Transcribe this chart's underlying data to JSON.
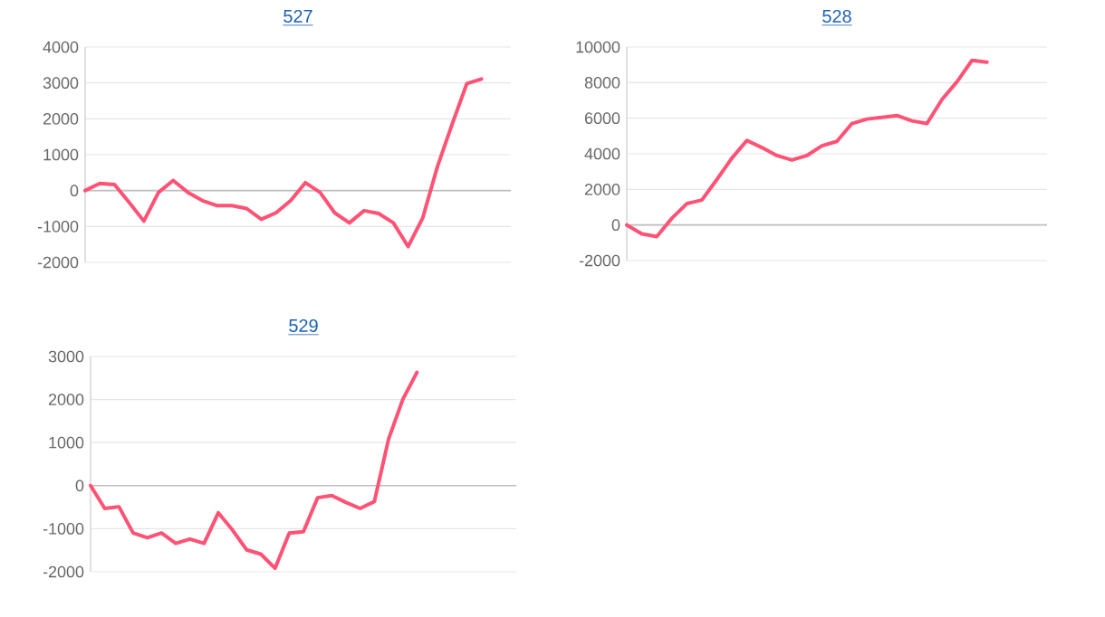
{
  "chart_data": [
    {
      "type": "line",
      "title": "527",
      "color": "#ff5274",
      "grid": "y",
      "tick_labels": "y",
      "ylim": [
        -2000,
        4000
      ],
      "yticks": [
        -2000,
        -1000,
        0,
        1000,
        2000,
        3000,
        4000
      ],
      "categories": [
        null,
        null,
        null,
        null,
        null,
        null,
        null,
        null,
        null,
        null,
        null,
        null,
        null,
        null,
        null,
        null,
        null,
        null,
        null,
        null,
        null,
        null,
        null,
        null,
        null,
        null,
        null,
        null,
        null,
        null
      ],
      "values": [
        0,
        200,
        170,
        -330,
        -850,
        -50,
        280,
        -50,
        -280,
        -420,
        -420,
        -500,
        -800,
        -620,
        -280,
        220,
        -50,
        -620,
        -900,
        -560,
        -640,
        -900,
        -1560,
        -760,
        670,
        1850,
        2980,
        3110,
        null,
        null
      ]
    },
    {
      "type": "line",
      "title": "528",
      "color": "#ff5274",
      "grid": "y",
      "tick_labels": "y",
      "ylim": [
        -2000,
        10000
      ],
      "yticks": [
        -2000,
        0,
        2000,
        4000,
        6000,
        8000,
        10000
      ],
      "categories": [
        null,
        null,
        null,
        null,
        null,
        null,
        null,
        null,
        null,
        null,
        null,
        null,
        null,
        null,
        null,
        null,
        null,
        null,
        null,
        null,
        null,
        null,
        null,
        null,
        null,
        null,
        null,
        null,
        null
      ],
      "values": [
        0,
        -500,
        -650,
        370,
        1200,
        1400,
        2550,
        3750,
        4750,
        4350,
        3900,
        3650,
        3900,
        4450,
        4700,
        5700,
        5950,
        6050,
        6150,
        5850,
        5700,
        7050,
        8050,
        9250,
        9150,
        null,
        null,
        null,
        null
      ]
    },
    {
      "type": "line",
      "title": "529",
      "color": "#ff5274",
      "grid": "y",
      "tick_labels": "y",
      "ylim": [
        -2000,
        3000
      ],
      "yticks": [
        -2000,
        -1000,
        0,
        1000,
        2000,
        3000
      ],
      "categories": [
        null,
        null,
        null,
        null,
        null,
        null,
        null,
        null,
        null,
        null,
        null,
        null,
        null,
        null,
        null,
        null,
        null,
        null,
        null,
        null,
        null,
        null,
        null,
        null,
        null,
        null,
        null,
        null,
        null,
        null,
        null
      ],
      "values": [
        0,
        -530,
        -490,
        -1100,
        -1210,
        -1100,
        -1340,
        -1240,
        -1340,
        -630,
        -1030,
        -1490,
        -1590,
        -1920,
        -1100,
        -1070,
        -280,
        -230,
        -390,
        -530,
        -370,
        1080,
        2000,
        2630,
        null,
        null,
        null,
        null,
        null,
        null,
        null
      ]
    }
  ]
}
